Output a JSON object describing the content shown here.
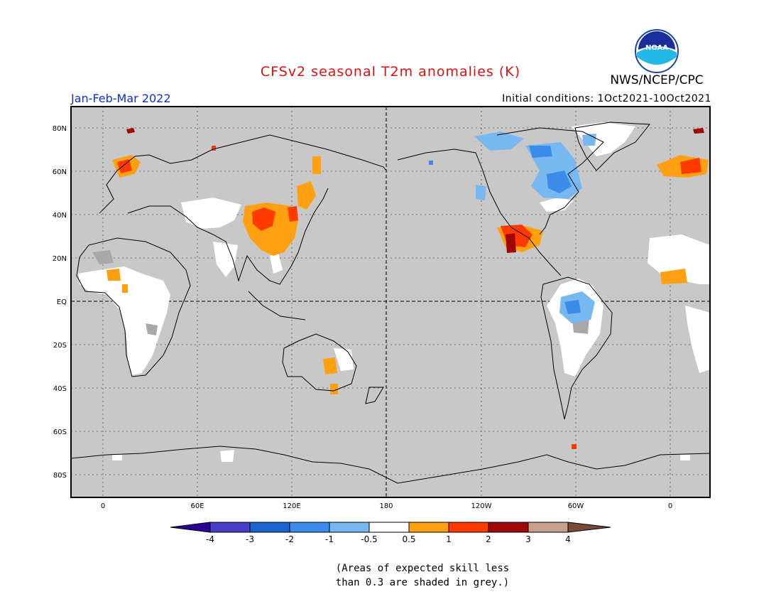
{
  "header": {
    "title": "CFSv2 seasonal T2m anomalies (K)",
    "org": "NWS/NCEP/CPC",
    "logo_text": "NOAA",
    "season": "Jan-Feb-Mar 2022",
    "initial_conditions": "Initial conditions: 1Oct2021-10Oct2021"
  },
  "map": {
    "lat_labels": [
      "80N",
      "60N",
      "40N",
      "20N",
      "EQ",
      "20S",
      "40S",
      "60S",
      "80S"
    ],
    "lon_labels": [
      "0",
      "60E",
      "120E",
      "180",
      "120W",
      "60W",
      "0"
    ],
    "background_color": "#c8c8c8"
  },
  "colorbar": {
    "colors": [
      "#2a0095",
      "#4a3ec8",
      "#1c64d0",
      "#3a8ce8",
      "#78b8f0",
      "#ffffff",
      "#ffa010",
      "#ff3a00",
      "#a00808",
      "#c8a08c",
      "#7a4a38"
    ],
    "labels": [
      "-4",
      "-3",
      "-2",
      "-1",
      "-0.5",
      "0.5",
      "1",
      "2",
      "3",
      "4"
    ]
  },
  "footnote": {
    "line1": "(Areas of expected skill less",
    "line2": "than 0.3 are shaded in grey.)"
  }
}
